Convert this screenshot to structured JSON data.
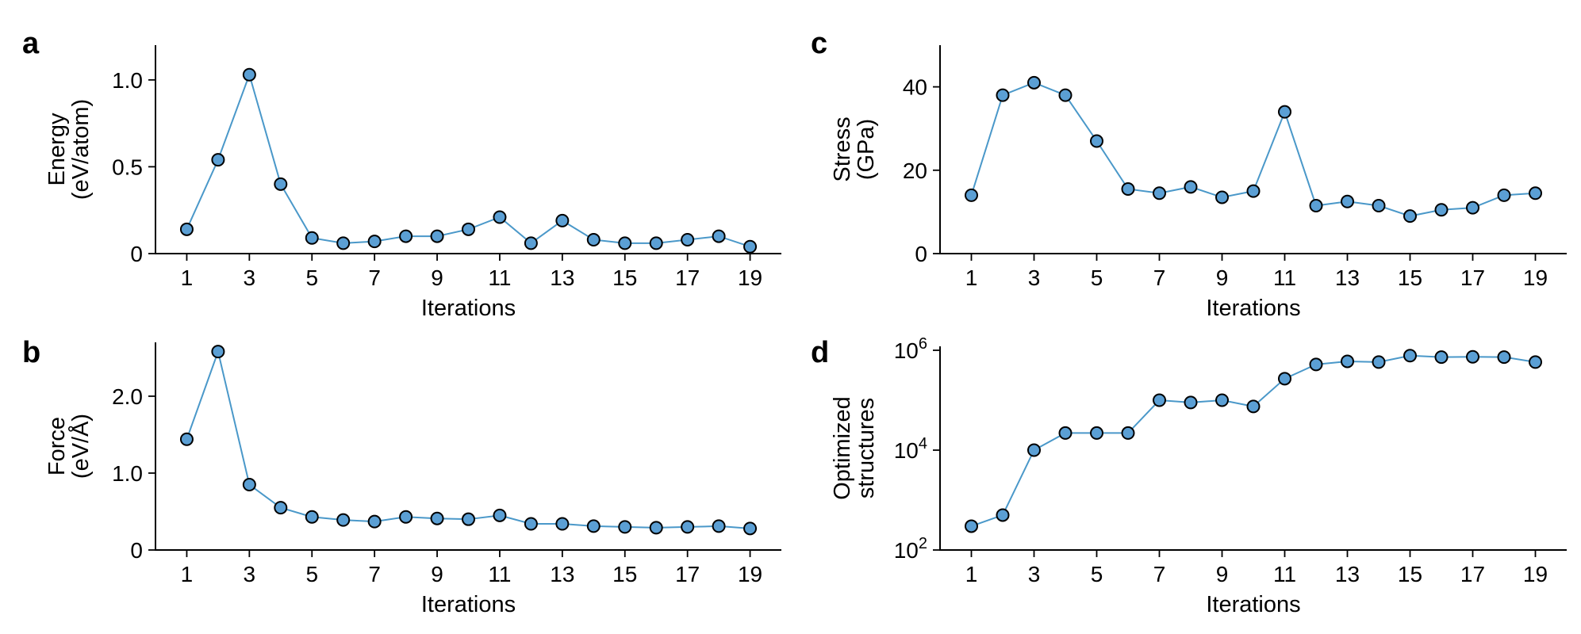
{
  "chart_data": [
    {
      "id": "a",
      "panel": "a",
      "type": "line",
      "x": [
        1,
        2,
        3,
        4,
        5,
        6,
        7,
        8,
        9,
        10,
        11,
        12,
        13,
        14,
        15,
        16,
        17,
        18,
        19
      ],
      "values": [
        0.14,
        0.54,
        1.03,
        0.4,
        0.09,
        0.06,
        0.07,
        0.1,
        0.1,
        0.14,
        0.21,
        0.06,
        0.19,
        0.08,
        0.06,
        0.06,
        0.08,
        0.1,
        0.04
      ],
      "ylabel": [
        "Energy",
        "(eV/atom)"
      ],
      "xlabel": "Iterations",
      "xticks": [
        1,
        3,
        5,
        7,
        9,
        11,
        13,
        15,
        17,
        19
      ],
      "yticks": [
        0,
        0.5,
        1.0
      ],
      "yticklabels": [
        "0",
        "0.5",
        "1.0"
      ],
      "ylim": [
        0,
        1.2
      ],
      "xlim": [
        0,
        20
      ],
      "yscale": "linear",
      "color": "#5b9fd4"
    },
    {
      "id": "b",
      "panel": "b",
      "type": "line",
      "x": [
        1,
        2,
        3,
        4,
        5,
        6,
        7,
        8,
        9,
        10,
        11,
        12,
        13,
        14,
        15,
        16,
        17,
        18,
        19
      ],
      "values": [
        1.44,
        2.58,
        0.85,
        0.55,
        0.43,
        0.39,
        0.37,
        0.43,
        0.41,
        0.4,
        0.45,
        0.34,
        0.34,
        0.31,
        0.3,
        0.29,
        0.3,
        0.31,
        0.28
      ],
      "ylabel": [
        "Force",
        "(eV/Å)"
      ],
      "xlabel": "Iterations",
      "xticks": [
        1,
        3,
        5,
        7,
        9,
        11,
        13,
        15,
        17,
        19
      ],
      "yticks": [
        0,
        1.0,
        2.0
      ],
      "yticklabels": [
        "0",
        "1.0",
        "2.0"
      ],
      "ylim": [
        0,
        2.7
      ],
      "xlim": [
        0,
        20
      ],
      "yscale": "linear",
      "color": "#5b9fd4"
    },
    {
      "id": "c",
      "panel": "c",
      "type": "line",
      "x": [
        1,
        2,
        3,
        4,
        5,
        6,
        7,
        8,
        9,
        10,
        11,
        12,
        13,
        14,
        15,
        16,
        17,
        18,
        19
      ],
      "values": [
        14,
        38,
        41,
        38,
        27,
        15.5,
        14.5,
        16,
        13.5,
        15,
        34,
        11.5,
        12.5,
        11.5,
        9,
        10.5,
        11,
        14,
        14.5
      ],
      "ylabel": [
        "Stress",
        "(GPa)"
      ],
      "xlabel": "Iterations",
      "xticks": [
        1,
        3,
        5,
        7,
        9,
        11,
        13,
        15,
        17,
        19
      ],
      "yticks": [
        0,
        20,
        40
      ],
      "yticklabels": [
        "0",
        "20",
        "40"
      ],
      "ylim": [
        0,
        50
      ],
      "xlim": [
        0,
        20
      ],
      "yscale": "linear",
      "color": "#5b9fd4"
    },
    {
      "id": "d",
      "panel": "d",
      "type": "line",
      "x": [
        1,
        2,
        3,
        4,
        5,
        6,
        7,
        8,
        9,
        10,
        11,
        12,
        13,
        14,
        15,
        16,
        17,
        18,
        19
      ],
      "values": [
        300,
        500,
        10000,
        22000,
        22000,
        22000,
        100000,
        90000,
        100000,
        75000,
        270000,
        520000,
        600000,
        580000,
        780000,
        730000,
        740000,
        730000,
        580000
      ],
      "ylabel": [
        "Optimized",
        "structures"
      ],
      "xlabel": "Iterations",
      "xticks": [
        1,
        3,
        5,
        7,
        9,
        11,
        13,
        15,
        17,
        19
      ],
      "yticks": [
        100,
        10000,
        1000000
      ],
      "yticklabels": [
        {
          "base": "10",
          "exp": "2"
        },
        {
          "base": "10",
          "exp": "4"
        },
        {
          "base": "10",
          "exp": "6"
        }
      ],
      "ylim": [
        100,
        1200000
      ],
      "xlim": [
        0,
        20
      ],
      "yscale": "log",
      "color": "#5b9fd4"
    }
  ]
}
